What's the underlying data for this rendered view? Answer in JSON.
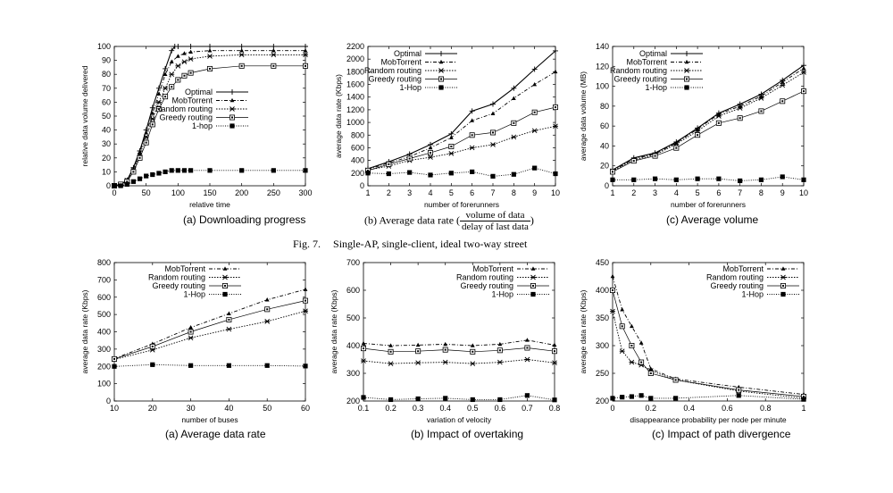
{
  "figure7": {
    "caption_label": "Fig. 7.",
    "caption_text": "Single-AP, single-client, ideal two-way street"
  },
  "chart_data": [
    {
      "id": "a1",
      "type": "line",
      "caption": "(a) Downloading progress",
      "xlabel": "relative time",
      "ylabel": "relative data volume delivered",
      "xlim": [
        0,
        300
      ],
      "ylim": [
        0,
        100
      ],
      "xticks": [
        0,
        50,
        100,
        150,
        200,
        250,
        300
      ],
      "yticks": [
        0,
        10,
        20,
        30,
        40,
        50,
        60,
        70,
        80,
        90,
        100
      ],
      "legend_position": "middle-right",
      "series": [
        {
          "name": "Optimal",
          "x": [
            0,
            10,
            20,
            30,
            40,
            50,
            60,
            70,
            80,
            90,
            95,
            100,
            120,
            150,
            200,
            250,
            300
          ],
          "y": [
            0,
            1,
            4,
            13,
            25,
            40,
            56,
            70,
            84,
            97,
            100,
            100,
            100,
            100,
            100,
            100,
            100
          ]
        },
        {
          "name": "MobTorrent",
          "x": [
            0,
            10,
            20,
            30,
            40,
            50,
            60,
            70,
            80,
            90,
            100,
            110,
            120,
            150,
            200,
            250,
            300
          ],
          "y": [
            0,
            1,
            4,
            12,
            24,
            38,
            52,
            66,
            80,
            89,
            93,
            95,
            96,
            97,
            97,
            97,
            97
          ]
        },
        {
          "name": "Random routing",
          "x": [
            0,
            10,
            20,
            30,
            40,
            50,
            60,
            70,
            80,
            90,
            100,
            110,
            120,
            150,
            200,
            250,
            300
          ],
          "y": [
            0,
            1,
            4,
            11,
            22,
            35,
            48,
            60,
            70,
            80,
            86,
            89,
            91,
            93,
            94,
            94,
            94
          ]
        },
        {
          "name": "Greedy routing",
          "x": [
            0,
            10,
            20,
            30,
            40,
            50,
            60,
            70,
            80,
            90,
            100,
            110,
            120,
            150,
            200,
            250,
            300
          ],
          "y": [
            0,
            1,
            3,
            10,
            20,
            31,
            44,
            55,
            64,
            71,
            76,
            79,
            81,
            84,
            86,
            86,
            86
          ]
        },
        {
          "name": "1-hop",
          "x": [
            0,
            10,
            20,
            30,
            40,
            50,
            60,
            70,
            80,
            90,
            100,
            110,
            120,
            150,
            200,
            250,
            300
          ],
          "y": [
            0,
            0,
            1,
            3,
            5,
            7,
            8,
            9,
            10,
            11,
            11,
            11,
            11,
            11,
            11,
            11,
            11
          ]
        }
      ]
    },
    {
      "id": "b1",
      "type": "line",
      "caption": "(b) Average data rate (",
      "caption_frac_num": "volume of data",
      "caption_frac_den": "delay of last data",
      "caption_end": ")",
      "xlabel": "number of forerunners",
      "ylabel": "average data rate (Kbps)",
      "xlim": [
        1,
        10
      ],
      "ylim": [
        0,
        2200
      ],
      "xticks": [
        1,
        2,
        3,
        4,
        5,
        6,
        7,
        8,
        9,
        10
      ],
      "yticks": [
        0,
        200,
        400,
        600,
        800,
        1000,
        1200,
        1400,
        1600,
        1800,
        2000,
        2200
      ],
      "legend_position": "top-left",
      "series": [
        {
          "name": "Optimal",
          "x": [
            1,
            2,
            3,
            4,
            5,
            6,
            7,
            8,
            9,
            10
          ],
          "y": [
            270,
            380,
            500,
            650,
            820,
            1180,
            1290,
            1540,
            1840,
            2130
          ]
        },
        {
          "name": "MobTorrent",
          "x": [
            1,
            2,
            3,
            4,
            5,
            6,
            7,
            8,
            9,
            10
          ],
          "y": [
            260,
            360,
            460,
            600,
            760,
            1030,
            1140,
            1380,
            1600,
            1800
          ]
        },
        {
          "name": "Random routing",
          "x": [
            1,
            2,
            3,
            4,
            5,
            6,
            7,
            8,
            9,
            10
          ],
          "y": [
            250,
            310,
            400,
            450,
            510,
            600,
            650,
            770,
            870,
            940
          ]
        },
        {
          "name": "Greedy routing",
          "x": [
            1,
            2,
            3,
            4,
            5,
            6,
            7,
            8,
            9,
            10
          ],
          "y": [
            240,
            340,
            430,
            520,
            620,
            800,
            840,
            990,
            1160,
            1240
          ]
        },
        {
          "name": "1-Hop",
          "x": [
            1,
            2,
            3,
            4,
            5,
            6,
            7,
            8,
            9,
            10
          ],
          "y": [
            200,
            190,
            210,
            170,
            200,
            220,
            150,
            180,
            280,
            190
          ]
        }
      ]
    },
    {
      "id": "c1",
      "type": "line",
      "caption": "(c) Average volume",
      "xlabel": "number of forerunners",
      "ylabel": "average data volume (MB)",
      "xlim": [
        1,
        10
      ],
      "ylim": [
        0,
        140
      ],
      "xticks": [
        1,
        2,
        3,
        4,
        5,
        6,
        7,
        8,
        9,
        10
      ],
      "yticks": [
        0,
        20,
        40,
        60,
        80,
        100,
        120,
        140
      ],
      "legend_position": "top-left",
      "series": [
        {
          "name": "Optimal",
          "x": [
            1,
            2,
            3,
            4,
            5,
            6,
            7,
            8,
            9,
            10
          ],
          "y": [
            16,
            28,
            33,
            44,
            58,
            73,
            82,
            92,
            106,
            121
          ]
        },
        {
          "name": "MobTorrent",
          "x": [
            1,
            2,
            3,
            4,
            5,
            6,
            7,
            8,
            9,
            10
          ],
          "y": [
            15,
            27,
            32,
            43,
            57,
            72,
            80,
            90,
            104,
            118
          ]
        },
        {
          "name": "Random routing",
          "x": [
            1,
            2,
            3,
            4,
            5,
            6,
            7,
            8,
            9,
            10
          ],
          "y": [
            15,
            26,
            31,
            42,
            55,
            70,
            78,
            88,
            101,
            114
          ]
        },
        {
          "name": "Greedy routing",
          "x": [
            1,
            2,
            3,
            4,
            5,
            6,
            7,
            8,
            9,
            10
          ],
          "y": [
            14,
            25,
            30,
            38,
            51,
            63,
            68,
            75,
            85,
            95
          ]
        },
        {
          "name": "1-Hop",
          "x": [
            1,
            2,
            3,
            4,
            5,
            6,
            7,
            8,
            9,
            10
          ],
          "y": [
            6,
            6,
            7,
            6,
            7,
            7,
            5,
            6,
            9,
            6
          ]
        }
      ]
    },
    {
      "id": "a2",
      "type": "line",
      "caption": "(a) Average data rate",
      "xlabel": "number of buses",
      "ylabel": "average data rate (Kbps)",
      "xlim": [
        10,
        60
      ],
      "ylim": [
        0,
        800
      ],
      "xticks": [
        10,
        20,
        30,
        40,
        50,
        60
      ],
      "yticks": [
        0,
        100,
        200,
        300,
        400,
        500,
        600,
        700,
        800
      ],
      "legend_position": "top-left",
      "series": [
        {
          "name": "MobTorrent",
          "x": [
            10,
            20,
            30,
            40,
            50,
            60
          ],
          "y": [
            245,
            330,
            425,
            505,
            585,
            645
          ]
        },
        {
          "name": "Random routing",
          "x": [
            10,
            20,
            30,
            40,
            50,
            60
          ],
          "y": [
            240,
            295,
            365,
            415,
            460,
            520
          ]
        },
        {
          "name": "Greedy routing",
          "x": [
            10,
            20,
            30,
            40,
            50,
            60
          ],
          "y": [
            243,
            315,
            400,
            470,
            530,
            580
          ]
        },
        {
          "name": "1-Hop",
          "x": [
            10,
            20,
            30,
            40,
            50,
            60
          ],
          "y": [
            200,
            210,
            205,
            205,
            205,
            202
          ]
        }
      ]
    },
    {
      "id": "b2",
      "type": "line",
      "caption": "(b) Impact of overtaking",
      "xlabel": "variation of velocity",
      "ylabel": "average data rate (Kbps)",
      "xlim": [
        0.1,
        0.8
      ],
      "ylim": [
        200,
        700
      ],
      "xticks": [
        0.1,
        0.2,
        0.3,
        0.4,
        0.5,
        0.6,
        0.7,
        0.8
      ],
      "yticks": [
        200,
        300,
        400,
        500,
        600,
        700
      ],
      "legend_position": "top-right",
      "series": [
        {
          "name": "MobTorrent",
          "x": [
            0.1,
            0.2,
            0.3,
            0.4,
            0.5,
            0.6,
            0.7,
            0.8
          ],
          "y": [
            408,
            400,
            402,
            405,
            400,
            405,
            420,
            402
          ]
        },
        {
          "name": "Random routing",
          "x": [
            0.1,
            0.2,
            0.3,
            0.4,
            0.5,
            0.6,
            0.7,
            0.8
          ],
          "y": [
            345,
            335,
            338,
            340,
            335,
            340,
            350,
            338
          ]
        },
        {
          "name": "Greedy routing",
          "x": [
            0.1,
            0.2,
            0.3,
            0.4,
            0.5,
            0.6,
            0.7,
            0.8
          ],
          "y": [
            390,
            378,
            380,
            385,
            378,
            383,
            392,
            380
          ]
        },
        {
          "name": "1-Hop",
          "x": [
            0.1,
            0.2,
            0.3,
            0.4,
            0.5,
            0.6,
            0.7,
            0.8
          ],
          "y": [
            213,
            205,
            208,
            210,
            205,
            205,
            220,
            204
          ]
        }
      ]
    },
    {
      "id": "c2",
      "type": "line",
      "caption": "(c) Impact of path divergence",
      "xlabel": "disappearance probability per node per minute",
      "ylabel": "average data rate (Kbps)",
      "xlim": [
        0,
        1
      ],
      "ylim": [
        200,
        450
      ],
      "xticks": [
        0,
        0.2,
        0.4,
        0.6,
        0.8,
        1
      ],
      "xtick_labels": [
        "0",
        "0.2",
        "0.4",
        "0.6",
        "0.8",
        "1"
      ],
      "yticks": [
        200,
        250,
        300,
        350,
        400,
        450
      ],
      "legend_position": "top-right",
      "series": [
        {
          "name": "MobTorrent",
          "x": [
            0,
            0.05,
            0.1,
            0.15,
            0.2,
            0.33,
            0.66,
            1
          ],
          "y": [
            425,
            365,
            335,
            305,
            258,
            240,
            225,
            212
          ]
        },
        {
          "name": "Random routing",
          "x": [
            0,
            0.05,
            0.1,
            0.15,
            0.2,
            0.33,
            0.66,
            1
          ],
          "y": [
            362,
            290,
            270,
            265,
            255,
            238,
            218,
            205
          ]
        },
        {
          "name": "Greedy routing",
          "x": [
            0,
            0.05,
            0.1,
            0.15,
            0.2,
            0.33,
            0.66,
            1
          ],
          "y": [
            400,
            335,
            300,
            270,
            250,
            238,
            220,
            208
          ]
        },
        {
          "name": "1-Hop",
          "x": [
            0,
            0.05,
            0.1,
            0.15,
            0.2,
            0.33,
            0.66,
            1
          ],
          "y": [
            205,
            207,
            208,
            210,
            205,
            205,
            210,
            203
          ]
        }
      ]
    }
  ]
}
